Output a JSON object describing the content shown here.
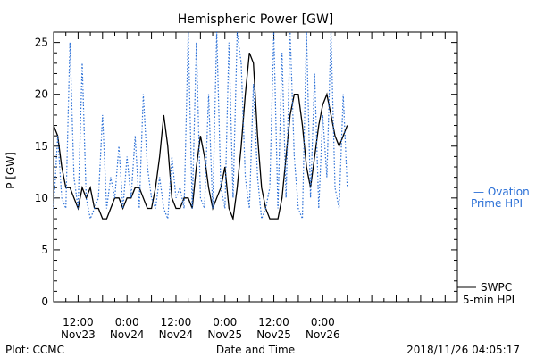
{
  "chart_data": {
    "type": "line",
    "title": "Hemispheric Power [GW]",
    "ylabel": "P [GW]",
    "xlabel": "Date and Time",
    "ylim": [
      0,
      26
    ],
    "yticks": [
      0,
      5,
      10,
      15,
      20,
      25
    ],
    "x_unit": "hours since 2018-11-22 06:00 UT",
    "xlim": [
      0,
      99
    ],
    "xticks": [
      {
        "x": 6,
        "time": "12:00",
        "date": "Nov23"
      },
      {
        "x": 18,
        "time": "0:00",
        "date": "Nov24"
      },
      {
        "x": 30,
        "time": "12:00",
        "date": "Nov24"
      },
      {
        "x": 42,
        "time": "0:00",
        "date": "Nov25"
      },
      {
        "x": 54,
        "time": "12:00",
        "date": "Nov25"
      },
      {
        "x": 66,
        "time": "0:00",
        "date": "Nov26"
      }
    ],
    "grid": false,
    "series": [
      {
        "name": "SWPC 5-min HPI",
        "legend_lines": [
          "SWPC",
          "5-min HPI"
        ],
        "color": "#000000",
        "style": "solid",
        "x": [
          0,
          1,
          2,
          3,
          4,
          5,
          6,
          7,
          8,
          9,
          10,
          11,
          12,
          13,
          14,
          15,
          16,
          17,
          18,
          19,
          20,
          21,
          22,
          23,
          24,
          25,
          26,
          27,
          28,
          29,
          30,
          31,
          32,
          33,
          34,
          35,
          36,
          37,
          38,
          39,
          40,
          41,
          42,
          43,
          44,
          45,
          46,
          47,
          48,
          49,
          50,
          51,
          52,
          53,
          54,
          55,
          56,
          57,
          58,
          59,
          60,
          61,
          62,
          63,
          64,
          65,
          66,
          67,
          68,
          69,
          70,
          71,
          72
        ],
        "values": [
          17,
          16,
          13,
          11,
          11,
          10,
          9,
          11,
          10,
          11,
          9,
          9,
          8,
          8,
          9,
          10,
          10,
          9,
          10,
          10,
          11,
          11,
          10,
          9,
          9,
          11,
          14,
          18,
          15,
          10,
          9,
          9,
          10,
          10,
          9,
          13,
          16,
          14,
          11,
          9,
          10,
          11,
          13,
          9,
          8,
          11,
          15,
          20,
          24,
          23,
          16,
          11,
          9,
          8,
          8,
          8,
          10,
          14,
          18,
          20,
          20,
          17,
          13,
          11,
          14,
          17,
          19,
          20,
          18,
          16,
          15,
          16,
          17
        ]
      },
      {
        "name": "Ovation Prime HPI",
        "legend_lines": [
          "— Ovation",
          "Prime HPI"
        ],
        "color": "#2a6fd6",
        "style": "dotted",
        "x": [
          0,
          1,
          2,
          3,
          4,
          5,
          6,
          7,
          8,
          9,
          10,
          11,
          12,
          13,
          14,
          15,
          16,
          17,
          18,
          19,
          20,
          21,
          22,
          23,
          24,
          25,
          26,
          27,
          28,
          29,
          30,
          31,
          32,
          33,
          34,
          35,
          36,
          37,
          38,
          39,
          40,
          41,
          42,
          43,
          44,
          45,
          46,
          47,
          48,
          49,
          50,
          51,
          52,
          53,
          54,
          55,
          56,
          57,
          58,
          59,
          60,
          61,
          62,
          63,
          64,
          65,
          66,
          67,
          68,
          69,
          70,
          71,
          72
        ],
        "values": [
          9,
          16,
          10,
          9,
          25,
          12,
          9,
          23,
          10,
          8,
          9,
          10,
          18,
          9,
          12,
          10,
          15,
          9,
          14,
          10,
          16,
          9,
          20,
          13,
          10,
          9,
          12,
          9,
          8,
          14,
          10,
          11,
          9,
          26,
          9,
          25,
          10,
          9,
          20,
          9,
          26,
          11,
          9,
          25,
          10,
          26,
          23,
          12,
          9,
          21,
          12,
          8,
          9,
          11,
          26,
          9,
          24,
          10,
          26,
          14,
          9,
          8,
          26,
          10,
          22,
          9,
          18,
          12,
          26,
          11,
          9,
          20,
          11
        ]
      }
    ]
  },
  "footer": {
    "left": "Plot: CCMC",
    "center": "Date and Time",
    "right": "2018/11/26 04:05:17"
  }
}
